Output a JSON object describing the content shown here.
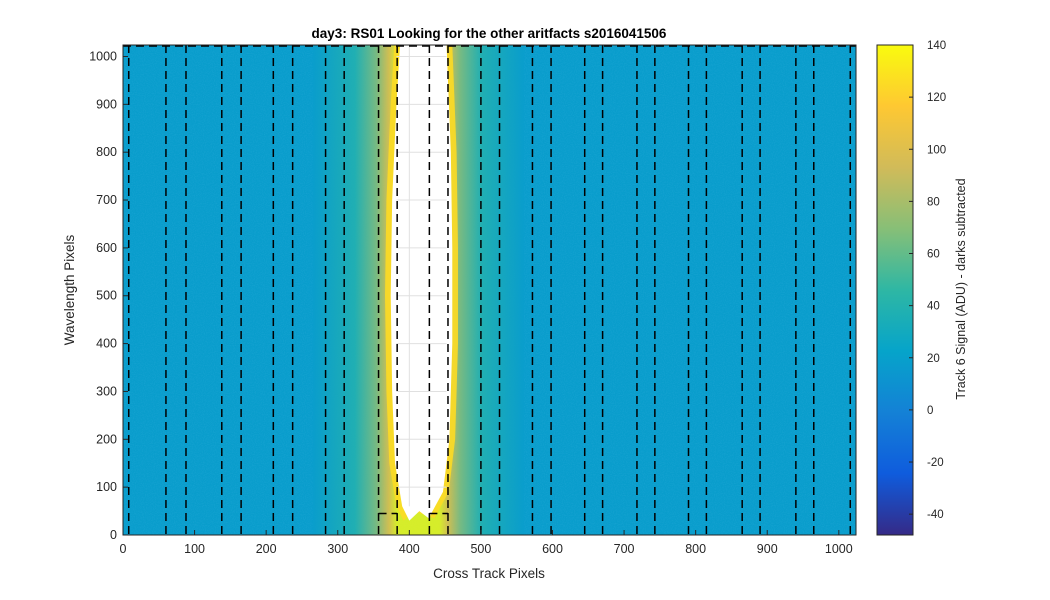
{
  "chart_data": {
    "type": "heatmap",
    "title": "day3: RS01  Looking for the other aritfacts  s2016041506",
    "xlabel": "Cross Track Pixels",
    "ylabel": "Wavelength Pixels",
    "xlim": [
      0,
      1024
    ],
    "ylim": [
      0,
      1024
    ],
    "x_ticks": [
      0,
      100,
      200,
      300,
      400,
      500,
      600,
      700,
      800,
      900,
      1000
    ],
    "y_ticks": [
      0,
      100,
      200,
      300,
      400,
      500,
      600,
      700,
      800,
      900,
      1000
    ],
    "colorbar": {
      "label": "Track 6 Signal (ADU) - darks subtracted",
      "range": [
        -48,
        140
      ],
      "ticks": [
        -40,
        -20,
        0,
        20,
        40,
        60,
        80,
        100,
        120,
        140
      ],
      "colormap": "parula",
      "colormap_colors": [
        "#352a87",
        "#0f5cdd",
        "#1481d6",
        "#06a4ca",
        "#2eb7a4",
        "#87bf77",
        "#d1bb59",
        "#fec832",
        "#f9fb0e"
      ]
    },
    "background_level_adu": 18,
    "saturated_region": {
      "x_range": [
        382,
        452
      ],
      "y_range": [
        30,
        1024
      ],
      "value": "above 140 (drawn white)"
    },
    "bright_band": {
      "x_range_at_top": [
        370,
        460
      ],
      "x_range_at_middle": [
        355,
        470
      ],
      "peak_adu": 140
    },
    "dashed_vertical_lines_x": [
      8,
      60,
      88,
      138,
      165,
      210,
      237,
      283,
      309,
      357,
      383,
      428,
      454,
      500,
      526,
      572,
      598,
      645,
      670,
      718,
      743,
      790,
      815,
      865,
      890,
      940,
      965,
      1016
    ],
    "dashed_box_segments": [
      {
        "x": [
          357,
          383
        ],
        "y": [
          45,
          1024
        ]
      },
      {
        "x": [
          428,
          454
        ],
        "y": [
          45,
          1024
        ]
      }
    ],
    "grid": "light gray lines inside the saturated region"
  }
}
